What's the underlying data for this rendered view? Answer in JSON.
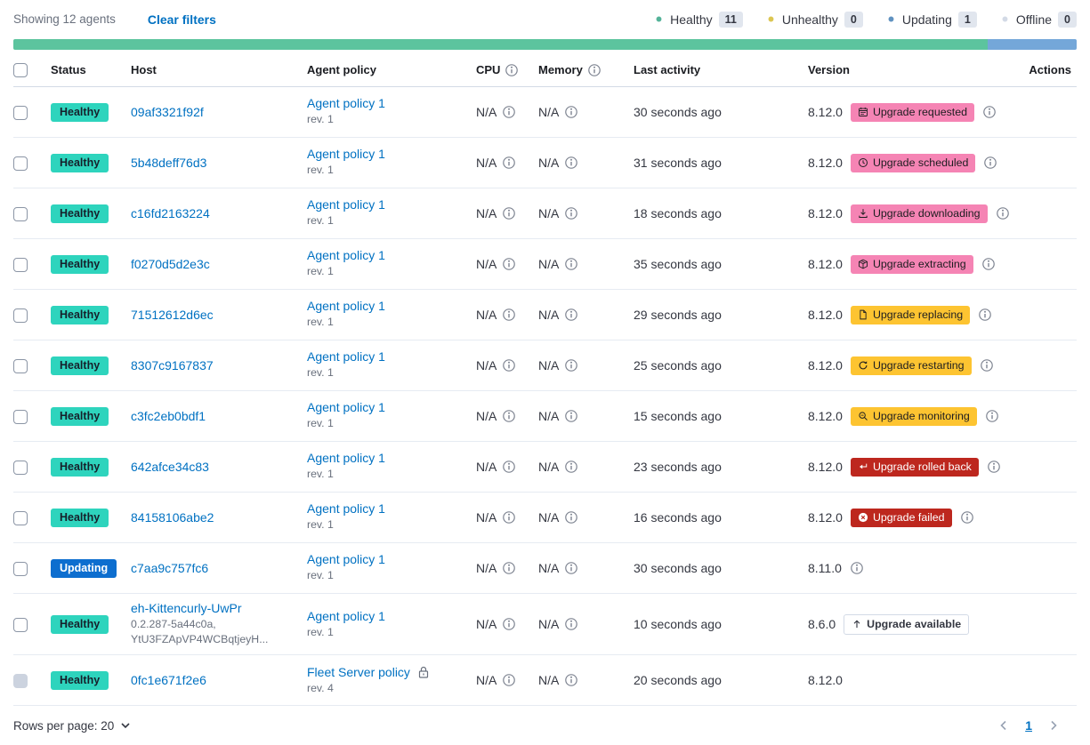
{
  "toolbar": {
    "showing_label": "Showing 12 agents",
    "clear_filters_label": "Clear filters",
    "legend": [
      {
        "label": "Healthy",
        "count": "11",
        "dot_color": "#54b399"
      },
      {
        "label": "Unhealthy",
        "count": "0",
        "dot_color": "#dcc652"
      },
      {
        "label": "Updating",
        "count": "1",
        "dot_color": "#6092c0"
      },
      {
        "label": "Offline",
        "count": "0",
        "dot_color": "#d3dae6"
      }
    ]
  },
  "status_bar": {
    "segments": [
      {
        "name": "healthy",
        "color": "#5cc49e",
        "percent": 91.67
      },
      {
        "name": "updating",
        "color": "#74a7d9",
        "percent": 8.33
      }
    ]
  },
  "table": {
    "columns": [
      {
        "label": ""
      },
      {
        "label": "Status"
      },
      {
        "label": "Host"
      },
      {
        "label": "Agent policy"
      },
      {
        "label": "CPU",
        "info": true
      },
      {
        "label": "Memory",
        "info": true
      },
      {
        "label": "Last activity"
      },
      {
        "label": "Version"
      },
      {
        "label": "Actions"
      }
    ],
    "rows": [
      {
        "status": {
          "label": "Healthy",
          "type": "healthy"
        },
        "host": "09af3321f92f",
        "policy": "Agent policy 1",
        "policy_rev": "rev. 1",
        "policy_locked": false,
        "cpu": "N/A",
        "memory": "N/A",
        "last_activity": "30 seconds ago",
        "version": "8.12.0",
        "upgrade_badge": {
          "label": "Upgrade requested",
          "type": "pink",
          "icon": "calendar-icon"
        },
        "version_info": true,
        "checkbox_disabled": false
      },
      {
        "status": {
          "label": "Healthy",
          "type": "healthy"
        },
        "host": "5b48deff76d3",
        "policy": "Agent policy 1",
        "policy_rev": "rev. 1",
        "policy_locked": false,
        "cpu": "N/A",
        "memory": "N/A",
        "last_activity": "31 seconds ago",
        "version": "8.12.0",
        "upgrade_badge": {
          "label": "Upgrade scheduled",
          "type": "pink",
          "icon": "clock-icon"
        },
        "version_info": true,
        "checkbox_disabled": false
      },
      {
        "status": {
          "label": "Healthy",
          "type": "healthy"
        },
        "host": "c16fd2163224",
        "policy": "Agent policy 1",
        "policy_rev": "rev. 1",
        "policy_locked": false,
        "cpu": "N/A",
        "memory": "N/A",
        "last_activity": "18 seconds ago",
        "version": "8.12.0",
        "upgrade_badge": {
          "label": "Upgrade downloading",
          "type": "pink",
          "icon": "download-icon"
        },
        "version_info": true,
        "checkbox_disabled": false
      },
      {
        "status": {
          "label": "Healthy",
          "type": "healthy"
        },
        "host": "f0270d5d2e3c",
        "policy": "Agent policy 1",
        "policy_rev": "rev. 1",
        "policy_locked": false,
        "cpu": "N/A",
        "memory": "N/A",
        "last_activity": "35 seconds ago",
        "version": "8.12.0",
        "upgrade_badge": {
          "label": "Upgrade extracting",
          "type": "pink",
          "icon": "package-icon"
        },
        "version_info": true,
        "checkbox_disabled": false
      },
      {
        "status": {
          "label": "Healthy",
          "type": "healthy"
        },
        "host": "71512612d6ec",
        "policy": "Agent policy 1",
        "policy_rev": "rev. 1",
        "policy_locked": false,
        "cpu": "N/A",
        "memory": "N/A",
        "last_activity": "29 seconds ago",
        "version": "8.12.0",
        "upgrade_badge": {
          "label": "Upgrade replacing",
          "type": "yellow",
          "icon": "document-icon"
        },
        "version_info": true,
        "checkbox_disabled": false
      },
      {
        "status": {
          "label": "Healthy",
          "type": "healthy"
        },
        "host": "8307c9167837",
        "policy": "Agent policy 1",
        "policy_rev": "rev. 1",
        "policy_locked": false,
        "cpu": "N/A",
        "memory": "N/A",
        "last_activity": "25 seconds ago",
        "version": "8.12.0",
        "upgrade_badge": {
          "label": "Upgrade restarting",
          "type": "yellow",
          "icon": "refresh-icon"
        },
        "version_info": true,
        "checkbox_disabled": false
      },
      {
        "status": {
          "label": "Healthy",
          "type": "healthy"
        },
        "host": "c3fc2eb0bdf1",
        "policy": "Agent policy 1",
        "policy_rev": "rev. 1",
        "policy_locked": false,
        "cpu": "N/A",
        "memory": "N/A",
        "last_activity": "15 seconds ago",
        "version": "8.12.0",
        "upgrade_badge": {
          "label": "Upgrade monitoring",
          "type": "yellow",
          "icon": "inspect-icon"
        },
        "version_info": true,
        "checkbox_disabled": false
      },
      {
        "status": {
          "label": "Healthy",
          "type": "healthy"
        },
        "host": "642afce34c83",
        "policy": "Agent policy 1",
        "policy_rev": "rev. 1",
        "policy_locked": false,
        "cpu": "N/A",
        "memory": "N/A",
        "last_activity": "23 seconds ago",
        "version": "8.12.0",
        "upgrade_badge": {
          "label": "Upgrade rolled back",
          "type": "red",
          "icon": "return-icon"
        },
        "version_info": true,
        "checkbox_disabled": false
      },
      {
        "status": {
          "label": "Healthy",
          "type": "healthy"
        },
        "host": "84158106abe2",
        "policy": "Agent policy 1",
        "policy_rev": "rev. 1",
        "policy_locked": false,
        "cpu": "N/A",
        "memory": "N/A",
        "last_activity": "16 seconds ago",
        "version": "8.12.0",
        "upgrade_badge": {
          "label": "Upgrade failed",
          "type": "red",
          "icon": "error-icon"
        },
        "version_info": true,
        "checkbox_disabled": false
      },
      {
        "status": {
          "label": "Updating",
          "type": "updating"
        },
        "host": "c7aa9c757fc6",
        "policy": "Agent policy 1",
        "policy_rev": "rev. 1",
        "policy_locked": false,
        "cpu": "N/A",
        "memory": "N/A",
        "last_activity": "30 seconds ago",
        "version": "8.11.0",
        "upgrade_badge": null,
        "version_info": true,
        "checkbox_disabled": false
      },
      {
        "status": {
          "label": "Healthy",
          "type": "healthy"
        },
        "host": "eh-Kittencurly-UwPr",
        "host_sub": [
          "0.2.287-5a44c0a,",
          "YtU3FZApVP4WCBqtjeyH..."
        ],
        "policy": "Agent policy 1",
        "policy_rev": "rev. 1",
        "policy_locked": false,
        "cpu": "N/A",
        "memory": "N/A",
        "last_activity": "10 seconds ago",
        "version": "8.6.0",
        "upgrade_badge": {
          "label": "Upgrade available",
          "type": "hollow",
          "icon": "arrow-up-icon"
        },
        "version_info": false,
        "checkbox_disabled": false
      },
      {
        "status": {
          "label": "Healthy",
          "type": "healthy"
        },
        "host": "0fc1e671f2e6",
        "policy": "Fleet Server policy",
        "policy_rev": "rev. 4",
        "policy_locked": true,
        "cpu": "N/A",
        "memory": "N/A",
        "last_activity": "20 seconds ago",
        "version": "8.12.0",
        "upgrade_badge": null,
        "version_info": false,
        "checkbox_disabled": true
      }
    ]
  },
  "footer": {
    "rows_per_page_label": "Rows per page: 20",
    "page": "1"
  },
  "colors": {
    "link": "#0071c2",
    "healthy_badge": "#2ed4bd",
    "updating_badge": "#0d6ecf",
    "pink_badge": "#f584b4",
    "yellow_badge": "#fdc431",
    "red_badge": "#bd271e"
  }
}
